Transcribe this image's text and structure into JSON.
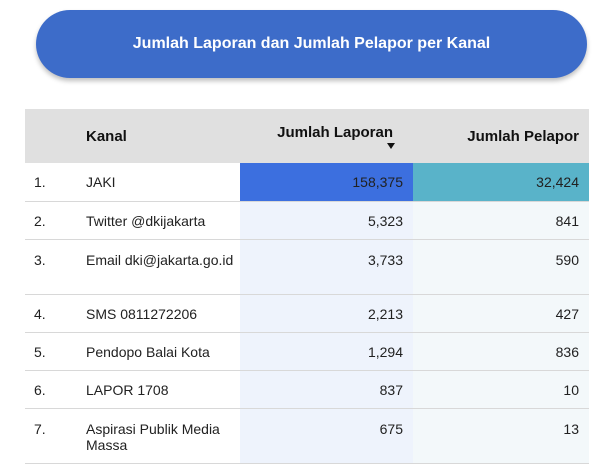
{
  "title": "Jumlah Laporan dan Jumlah Pelapor per Kanal",
  "table": {
    "headers": {
      "index": "",
      "kanal": "Kanal",
      "laporan": "Jumlah Laporan",
      "pelapor": "Jumlah Pelapor"
    },
    "sort": {
      "column": "Jumlah Laporan",
      "direction": "descending",
      "icon": "sort-down-arrow-icon"
    },
    "rows": [
      {
        "idx": "1.",
        "kanal": "JAKI",
        "laporan": "158,375",
        "pelapor": "32,424"
      },
      {
        "idx": "2.",
        "kanal": "Twitter @dkijakarta",
        "laporan": "5,323",
        "pelapor": "841"
      },
      {
        "idx": "3.",
        "kanal": "Email dki@jakarta.go.id",
        "laporan": "3,733",
        "pelapor": "590"
      },
      {
        "idx": "4.",
        "kanal": "SMS 0811272206",
        "laporan": "2,213",
        "pelapor": "427"
      },
      {
        "idx": "5.",
        "kanal": "Pendopo Balai Kota",
        "laporan": "1,294",
        "pelapor": "836"
      },
      {
        "idx": "6.",
        "kanal": "LAPOR 1708",
        "laporan": "837",
        "pelapor": "10"
      },
      {
        "idx": "7.",
        "kanal": "Aspirasi Publik Media Massa",
        "laporan": "675",
        "pelapor": "13"
      }
    ]
  },
  "colors": {
    "title_bg": "#3d6cc9",
    "header_bg": "#e0e0e0",
    "heat_laporan_max": "#3c6fdf",
    "heat_pelapor_max": "#59b3c9"
  }
}
